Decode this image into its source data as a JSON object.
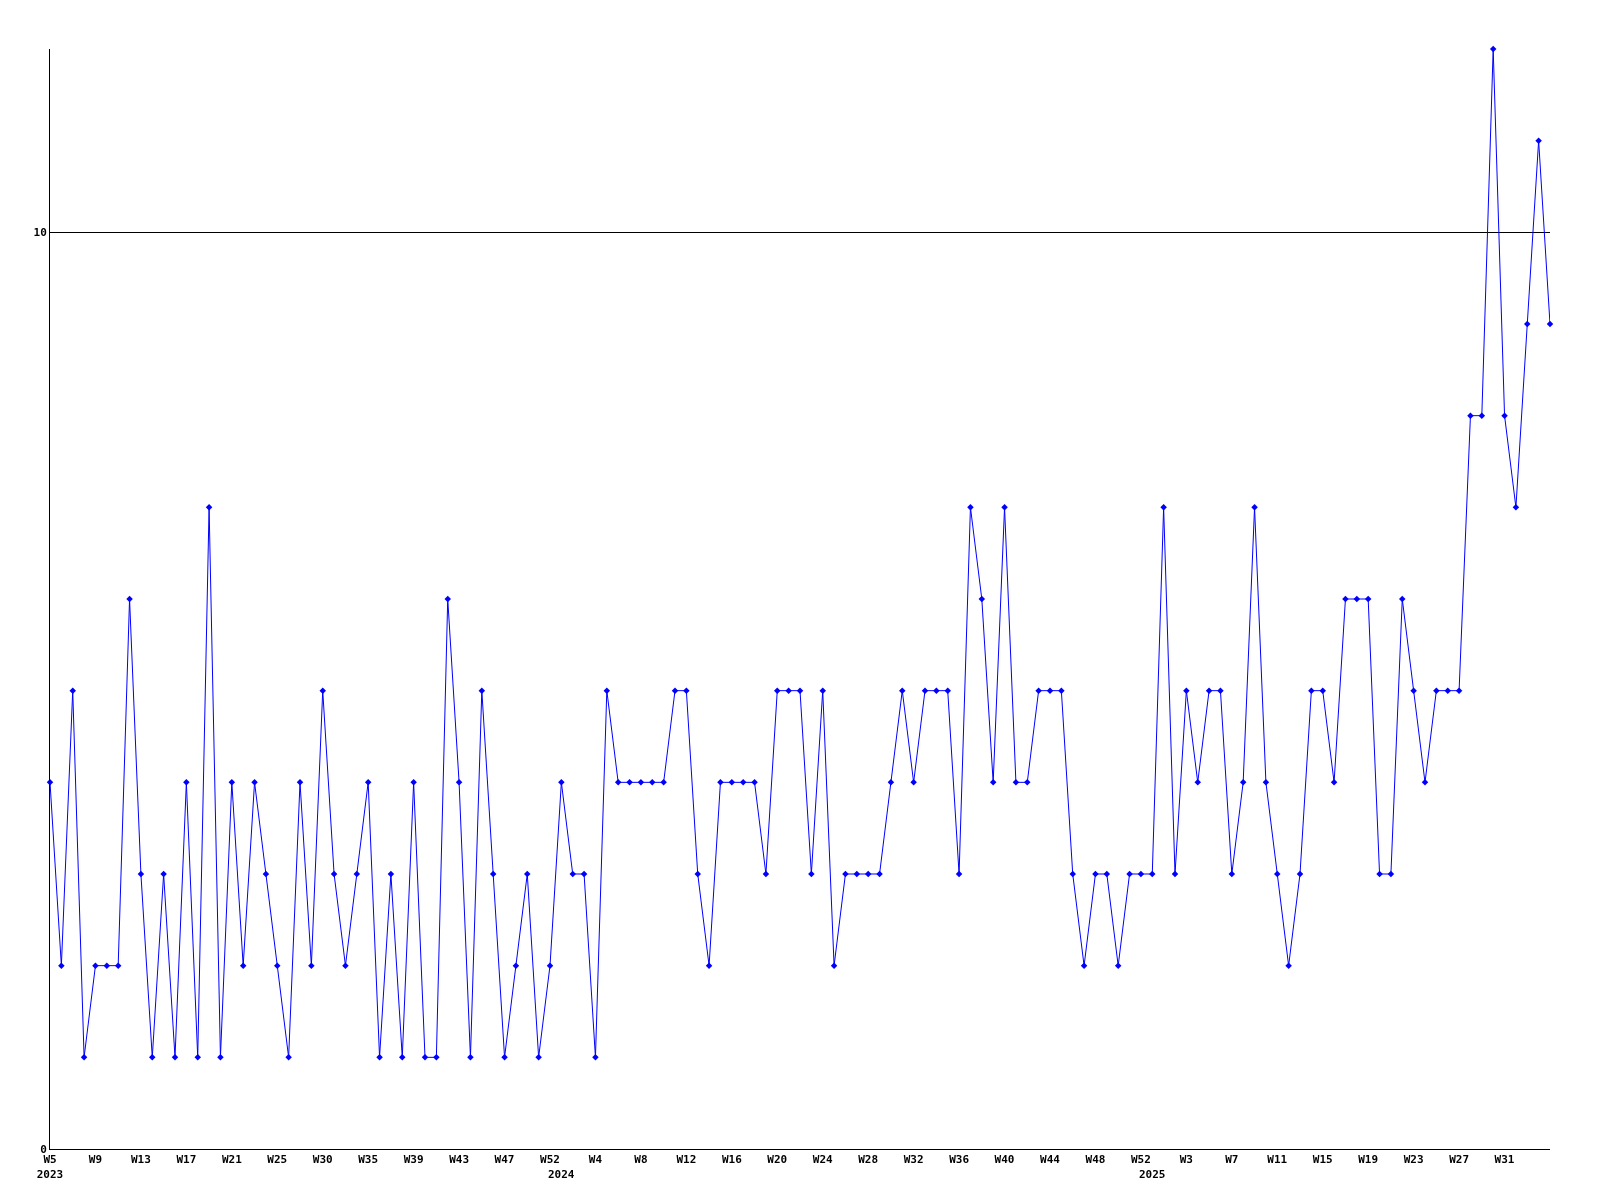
{
  "chart_data": {
    "type": "line",
    "categories": [
      "W5\n2023",
      null,
      null,
      null,
      "W9",
      null,
      null,
      null,
      "W13",
      null,
      null,
      null,
      "W17",
      null,
      null,
      null,
      "W21",
      null,
      null,
      null,
      "W25",
      null,
      null,
      null,
      "W30",
      null,
      null,
      null,
      "W35",
      null,
      null,
      null,
      "W39",
      null,
      null,
      null,
      "W43",
      null,
      null,
      null,
      "W47",
      null,
      null,
      null,
      "W52",
      "\n2024",
      null,
      null,
      "W4",
      null,
      null,
      null,
      "W8",
      null,
      null,
      null,
      "W12",
      null,
      null,
      null,
      "W16",
      null,
      null,
      null,
      "W20",
      null,
      null,
      null,
      "W24",
      null,
      null,
      null,
      "W28",
      null,
      null,
      null,
      "W32",
      null,
      null,
      null,
      "W36",
      null,
      null,
      null,
      "W40",
      null,
      null,
      null,
      "W44",
      null,
      null,
      null,
      "W48",
      null,
      null,
      null,
      "W52",
      "\n2025",
      null,
      null,
      "W3",
      null,
      null,
      null,
      "W7",
      null,
      null,
      null,
      "W11",
      null,
      null,
      null,
      "W15",
      null,
      null,
      null,
      "W19",
      null,
      null,
      null,
      "W23",
      null,
      null,
      null,
      "W27",
      null,
      null,
      null,
      "W31",
      null,
      null,
      null,
      null
    ],
    "series": [
      {
        "color": "#0000ff",
        "values": [
          4,
          2,
          5,
          1,
          2,
          2,
          2,
          6,
          3,
          1,
          3,
          1,
          4,
          1,
          7,
          1,
          4,
          2,
          4,
          3,
          2,
          1,
          4,
          2,
          5,
          3,
          2,
          3,
          4,
          1,
          3,
          1,
          4,
          1,
          1,
          6,
          4,
          1,
          5,
          3,
          1,
          2,
          3,
          1,
          2,
          4,
          3,
          3,
          1,
          5,
          4,
          4,
          4,
          4,
          4,
          5,
          5,
          3,
          2,
          4,
          4,
          4,
          4,
          3,
          5,
          5,
          5,
          3,
          5,
          2,
          3,
          3,
          3,
          3,
          4,
          5,
          4,
          5,
          5,
          5,
          3,
          7,
          6,
          4,
          7,
          4,
          4,
          5,
          5,
          5,
          3,
          2,
          3,
          3,
          2,
          3,
          3,
          3,
          7,
          3,
          5,
          4,
          5,
          5,
          3,
          4,
          7,
          4,
          3,
          2,
          3,
          5,
          5,
          4,
          6,
          6,
          6,
          3,
          3,
          6,
          5,
          4,
          5,
          5,
          5,
          8,
          8,
          12,
          8,
          7,
          9,
          11,
          9
        ]
      }
    ],
    "ylim": [
      0,
      12
    ],
    "yticks": [
      0,
      10
    ],
    "grid": "y",
    "marker": "diamond",
    "line_style": "solid"
  }
}
